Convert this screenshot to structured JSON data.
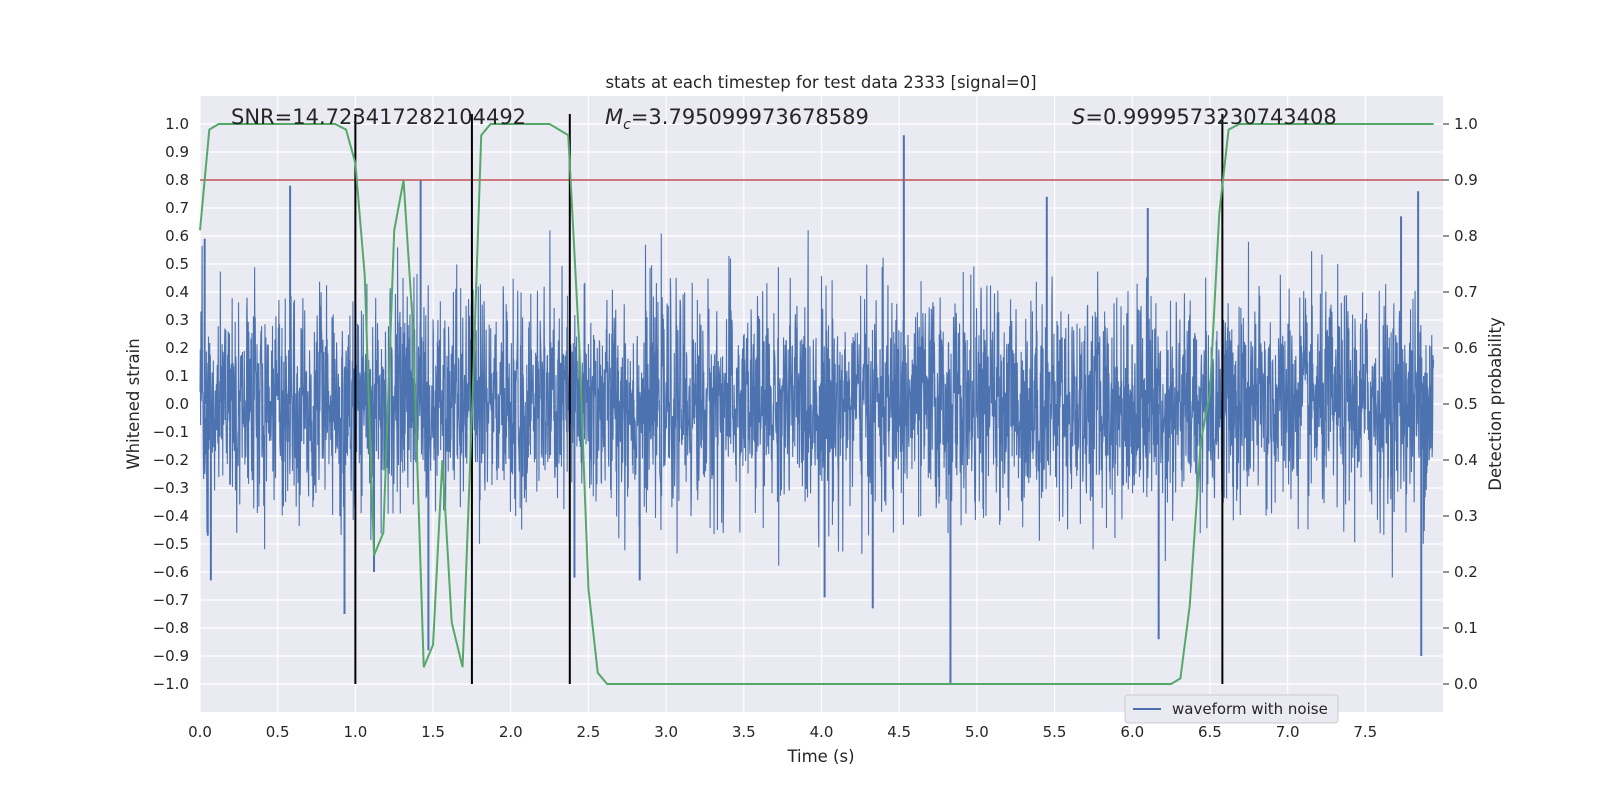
{
  "chart_data": {
    "type": "line",
    "title": "stats at each timestep for test data 2333 [signal=0]",
    "xlabel": "Time (s)",
    "ylabel_left": "Whitened strain",
    "ylabel_right": "Detection probability",
    "xlim": [
      0,
      8
    ],
    "ylim_left": [
      -1.1,
      1.1
    ],
    "ylim_right": [
      -0.05,
      1.05
    ],
    "x_ticks": [
      0.0,
      0.5,
      1.0,
      1.5,
      2.0,
      2.5,
      3.0,
      3.5,
      4.0,
      4.5,
      5.0,
      5.5,
      6.0,
      6.5,
      7.0,
      7.5
    ],
    "x_tick_labels": [
      "0.0",
      "0.5",
      "1.0",
      "1.5",
      "2.0",
      "2.5",
      "3.0",
      "3.5",
      "4.0",
      "4.5",
      "5.0",
      "5.5",
      "6.0",
      "6.5",
      "7.0",
      "7.5"
    ],
    "y_left_ticks": [
      1.0,
      0.9,
      0.8,
      0.7,
      0.6,
      0.5,
      0.4,
      0.3,
      0.2,
      0.1,
      0.0,
      -0.1,
      -0.2,
      -0.3,
      -0.4,
      -0.5,
      -0.6,
      -0.7,
      -0.8,
      -0.9,
      -1.0
    ],
    "y_left_tick_labels": [
      "1.0",
      "0.9",
      "0.8",
      "0.7",
      "0.6",
      "0.5",
      "0.4",
      "0.3",
      "0.2",
      "0.1",
      "0.0",
      "−0.1",
      "−0.2",
      "−0.3",
      "−0.4",
      "−0.5",
      "−0.6",
      "−0.7",
      "−0.8",
      "−0.9",
      "−1.0"
    ],
    "y_right_ticks": [
      1.0,
      0.9,
      0.8,
      0.7,
      0.6,
      0.5,
      0.4,
      0.3,
      0.2,
      0.1,
      0.0
    ],
    "y_right_tick_labels": [
      "1.0",
      "0.9",
      "0.8",
      "0.7",
      "0.6",
      "0.5",
      "0.4",
      "0.3",
      "0.2",
      "0.1",
      "0.0"
    ],
    "annotations": {
      "snr": "SNR=14.723417282104492",
      "mc_symbol": "M",
      "mc_subscript": "c",
      "mc_value": "=3.795099973678589",
      "s_symbol": "S",
      "s_value": "=0.9999573230743408"
    },
    "threshold": {
      "value": 0.9,
      "axis": "right",
      "color": "#c44e52"
    },
    "vertical_markers": {
      "x": [
        1.0,
        1.75,
        2.38,
        6.58
      ],
      "color": "#000000"
    },
    "legend": {
      "label": "waveform with noise",
      "placement": "lower-right"
    },
    "series": [
      {
        "name": "waveform with noise",
        "axis": "left",
        "color": "#4c72b0",
        "style": "noisy strain, typical amplitude ±0.4, rendered from deterministic pseudo-random noise",
        "sample_rate": 512,
        "typical_amplitude": 0.42,
        "spikes": [
          {
            "x": 0.03,
            "y": 0.59
          },
          {
            "x": 0.05,
            "y": -0.47
          },
          {
            "x": 0.07,
            "y": -0.63
          },
          {
            "x": 0.58,
            "y": 0.78
          },
          {
            "x": 0.93,
            "y": -0.75
          },
          {
            "x": 1.12,
            "y": -0.6
          },
          {
            "x": 1.42,
            "y": 0.8
          },
          {
            "x": 1.47,
            "y": -0.88
          },
          {
            "x": 2.41,
            "y": -0.62
          },
          {
            "x": 2.83,
            "y": -0.63
          },
          {
            "x": 4.02,
            "y": -0.69
          },
          {
            "x": 4.33,
            "y": -0.73
          },
          {
            "x": 4.53,
            "y": 0.96
          },
          {
            "x": 4.83,
            "y": -1.0
          },
          {
            "x": 5.45,
            "y": 0.74
          },
          {
            "x": 6.17,
            "y": -0.84
          },
          {
            "x": 6.1,
            "y": 0.7
          },
          {
            "x": 7.73,
            "y": 0.67
          },
          {
            "x": 7.84,
            "y": 0.76
          },
          {
            "x": 7.86,
            "y": -0.9
          }
        ]
      },
      {
        "name": "detection probability",
        "axis": "right",
        "color": "#55a868",
        "x": [
          0.0,
          0.06,
          0.12,
          0.5,
          0.75,
          0.87,
          0.94,
          1.0,
          1.06,
          1.12,
          1.18,
          1.25,
          1.31,
          1.37,
          1.44,
          1.5,
          1.56,
          1.62,
          1.69,
          1.75,
          1.81,
          1.87,
          1.94,
          2.0,
          2.12,
          2.25,
          2.31,
          2.37,
          2.44,
          2.5,
          2.56,
          2.62,
          2.75,
          3.0,
          3.25,
          3.5,
          4.0,
          4.5,
          5.0,
          5.5,
          6.0,
          6.25,
          6.31,
          6.37,
          6.44,
          6.5,
          6.56,
          6.62,
          6.69,
          6.75,
          7.0,
          7.5,
          7.94
        ],
        "y": [
          0.81,
          0.99,
          1.0,
          1.0,
          1.0,
          1.0,
          0.99,
          0.93,
          0.73,
          0.23,
          0.27,
          0.81,
          0.9,
          0.64,
          0.03,
          0.07,
          0.4,
          0.11,
          0.03,
          0.48,
          0.98,
          1.0,
          1.0,
          1.0,
          1.0,
          1.0,
          0.99,
          0.98,
          0.61,
          0.17,
          0.02,
          0.0,
          0.0,
          0.0,
          0.0,
          0.0,
          0.0,
          0.0,
          0.0,
          0.0,
          0.0,
          0.0,
          0.01,
          0.14,
          0.43,
          0.52,
          0.84,
          0.99,
          1.0,
          1.0,
          1.0,
          1.0,
          1.0
        ]
      }
    ]
  }
}
